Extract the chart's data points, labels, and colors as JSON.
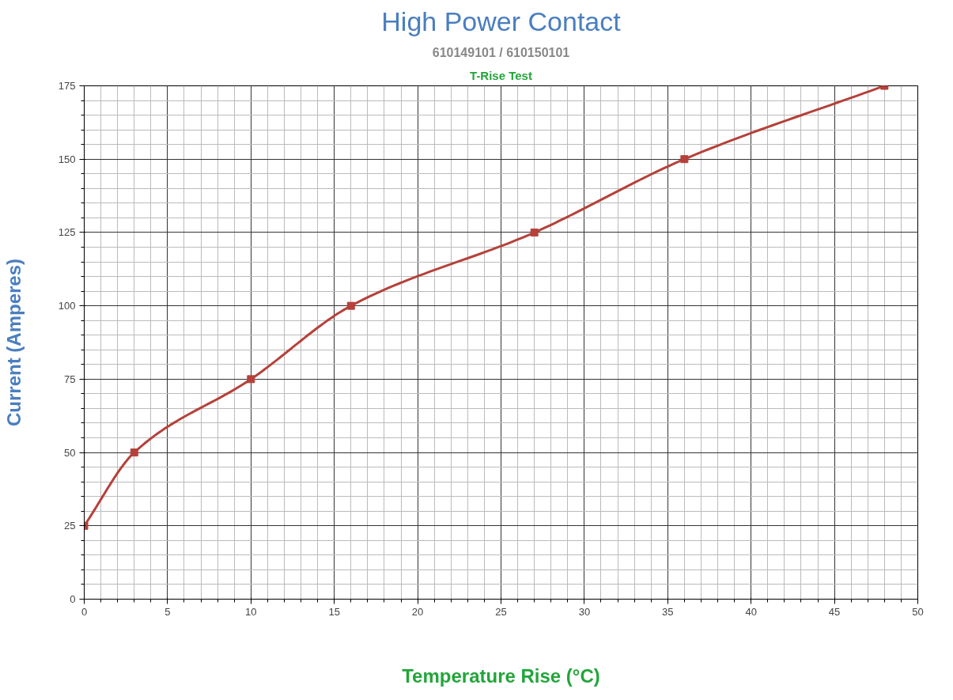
{
  "chart_data": {
    "type": "line",
    "title": "High Power Contact",
    "subtitle": "610149101 / 610150101",
    "annotations": [
      "T-Rise Test"
    ],
    "xlabel": "Temperature Rise (°C)",
    "ylabel": "Current (Amperes)",
    "x": [
      0,
      3,
      10,
      16,
      27,
      36,
      48
    ],
    "series": [
      {
        "color": "#b5413a",
        "values": [
          25,
          50,
          75,
          100,
          125,
          150,
          175
        ]
      }
    ],
    "xlim": [
      0,
      50
    ],
    "ylim": [
      0,
      175
    ],
    "xticks": [
      0,
      5,
      10,
      15,
      20,
      25,
      30,
      35,
      40,
      45,
      50
    ],
    "yticks": [
      0,
      25,
      50,
      75,
      100,
      125,
      150,
      175
    ],
    "grid": true,
    "marker": "square",
    "line_style": "solid"
  }
}
